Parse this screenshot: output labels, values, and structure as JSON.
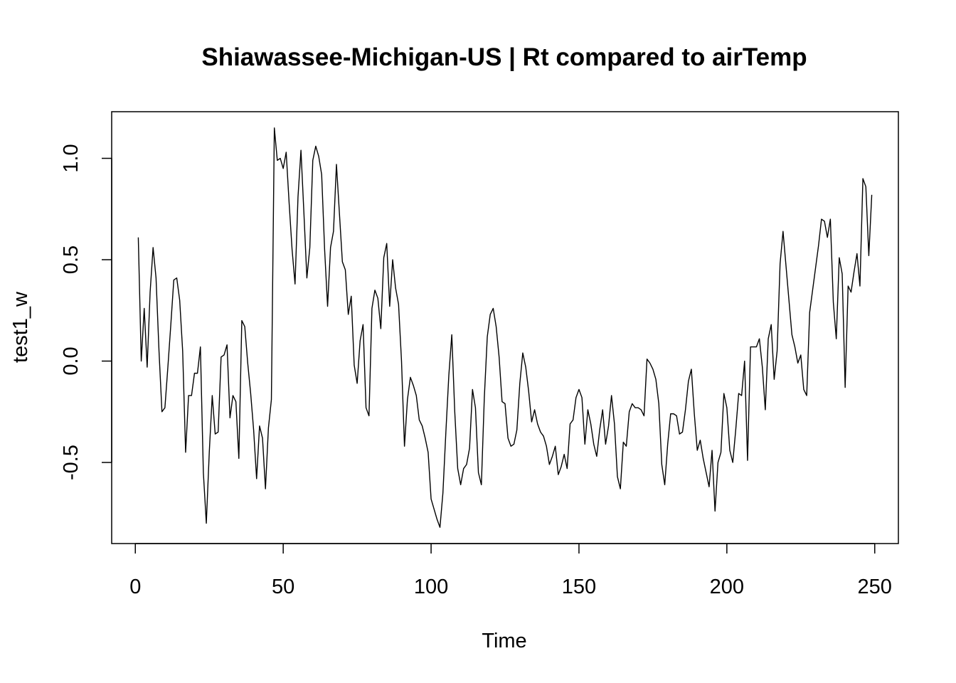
{
  "chart_data": {
    "type": "line",
    "title": "Shiawassee-Michigan-US | Rt compared to airTemp",
    "xlabel": "Time",
    "ylabel": "test1_w",
    "xlim": [
      -8,
      258
    ],
    "ylim": [
      -0.9,
      1.23
    ],
    "x_ticks": [
      0,
      50,
      100,
      150,
      200,
      250
    ],
    "y_ticks": [
      -0.5,
      0.0,
      0.5,
      1.0
    ],
    "x_tick_labels": [
      "0",
      "50",
      "100",
      "150",
      "200",
      "250"
    ],
    "y_tick_labels": [
      "-0.5",
      "0.0",
      "0.5",
      "1.0"
    ],
    "series": [
      {
        "x_start": 1,
        "values": [
          0.61,
          0.0,
          0.26,
          -0.03,
          0.34,
          0.56,
          0.41,
          0.05,
          -0.25,
          -0.23,
          -0.03,
          0.18,
          0.4,
          0.41,
          0.3,
          0.05,
          -0.45,
          -0.17,
          -0.17,
          -0.06,
          -0.06,
          0.07,
          -0.55,
          -0.8,
          -0.45,
          -0.17,
          -0.36,
          -0.35,
          0.02,
          0.03,
          0.08,
          -0.28,
          -0.17,
          -0.2,
          -0.48,
          0.2,
          0.17,
          -0.01,
          -0.16,
          -0.34,
          -0.58,
          -0.32,
          -0.38,
          -0.63,
          -0.33,
          -0.19,
          1.15,
          0.99,
          1.0,
          0.95,
          1.03,
          0.78,
          0.55,
          0.38,
          0.81,
          1.04,
          0.73,
          0.41,
          0.56,
          0.99,
          1.06,
          1.01,
          0.92,
          0.55,
          0.27,
          0.56,
          0.64,
          0.97,
          0.73,
          0.49,
          0.45,
          0.23,
          0.32,
          -0.02,
          -0.11,
          0.1,
          0.18,
          -0.23,
          -0.27,
          0.26,
          0.35,
          0.31,
          0.16,
          0.51,
          0.58,
          0.27,
          0.5,
          0.36,
          0.28,
          0.0,
          -0.42,
          -0.19,
          -0.08,
          -0.12,
          -0.17,
          -0.29,
          -0.32,
          -0.38,
          -0.45,
          -0.68,
          -0.73,
          -0.78,
          -0.82,
          -0.65,
          -0.35,
          -0.07,
          0.13,
          -0.25,
          -0.53,
          -0.61,
          -0.53,
          -0.51,
          -0.43,
          -0.14,
          -0.23,
          -0.55,
          -0.61,
          -0.18,
          0.12,
          0.23,
          0.26,
          0.17,
          0.02,
          -0.2,
          -0.21,
          -0.38,
          -0.42,
          -0.41,
          -0.34,
          -0.11,
          0.04,
          -0.03,
          -0.15,
          -0.3,
          -0.24,
          -0.31,
          -0.35,
          -0.37,
          -0.42,
          -0.51,
          -0.47,
          -0.42,
          -0.56,
          -0.52,
          -0.46,
          -0.53,
          -0.31,
          -0.29,
          -0.18,
          -0.14,
          -0.18,
          -0.41,
          -0.24,
          -0.31,
          -0.41,
          -0.47,
          -0.34,
          -0.24,
          -0.41,
          -0.32,
          -0.17,
          -0.31,
          -0.57,
          -0.63,
          -0.4,
          -0.42,
          -0.25,
          -0.21,
          -0.23,
          -0.23,
          -0.24,
          -0.27,
          0.01,
          -0.01,
          -0.04,
          -0.09,
          -0.21,
          -0.51,
          -0.61,
          -0.41,
          -0.26,
          -0.26,
          -0.27,
          -0.36,
          -0.35,
          -0.24,
          -0.1,
          -0.04,
          -0.26,
          -0.44,
          -0.39,
          -0.48,
          -0.55,
          -0.62,
          -0.44,
          -0.74,
          -0.5,
          -0.45,
          -0.16,
          -0.23,
          -0.44,
          -0.5,
          -0.34,
          -0.16,
          -0.17,
          0.0,
          -0.49,
          0.07,
          0.07,
          0.07,
          0.11,
          -0.03,
          -0.24,
          0.11,
          0.18,
          -0.09,
          0.05,
          0.48,
          0.64,
          0.47,
          0.3,
          0.13,
          0.07,
          -0.01,
          0.03,
          -0.14,
          -0.17,
          0.24,
          0.35,
          0.46,
          0.57,
          0.7,
          0.69,
          0.61,
          0.7,
          0.29,
          0.11,
          0.51,
          0.43,
          -0.13,
          0.37,
          0.34,
          0.44,
          0.53,
          0.37,
          0.9,
          0.86,
          0.52,
          0.82
        ]
      }
    ]
  }
}
